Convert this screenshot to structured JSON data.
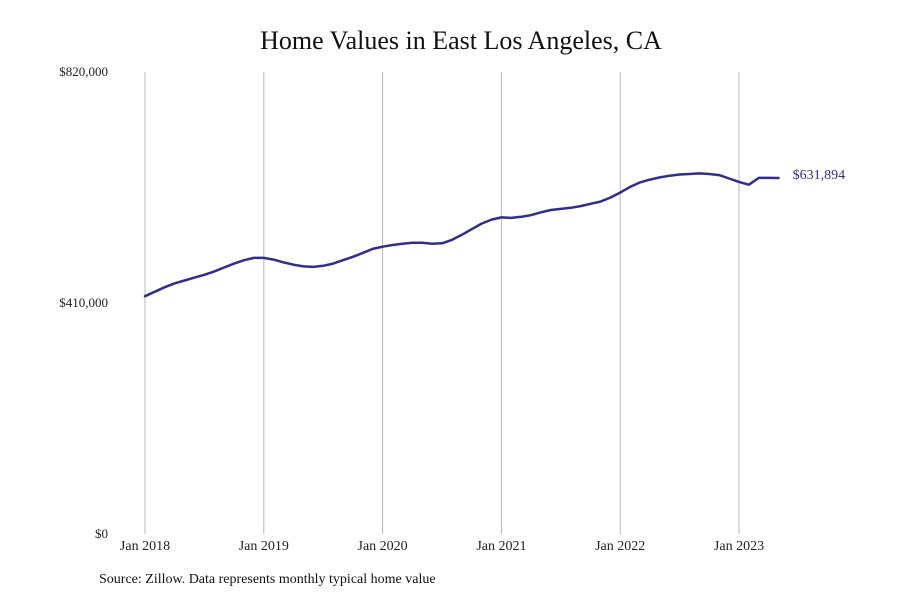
{
  "chart_data": {
    "type": "line",
    "title": "Home Values in East Los Angeles, CA",
    "source": "Source: Zillow. Data represents monthly typical home value",
    "ylim": [
      0,
      820000
    ],
    "y_ticks": [
      {
        "value": 820000,
        "label": "$820,000"
      },
      {
        "value": 410000,
        "label": "$410,000"
      },
      {
        "value": 0,
        "label": "$0"
      }
    ],
    "x_ticks": [
      {
        "value": "2018-01",
        "label": "Jan 2018"
      },
      {
        "value": "2019-01",
        "label": "Jan 2019"
      },
      {
        "value": "2020-01",
        "label": "Jan 2020"
      },
      {
        "value": "2021-01",
        "label": "Jan 2021"
      },
      {
        "value": "2022-01",
        "label": "Jan 2022"
      },
      {
        "value": "2023-01",
        "label": "Jan 2023"
      }
    ],
    "grid": "vertical",
    "line_color": "#2e2e8f",
    "end_label": "$631,894",
    "series": [
      {
        "x": [
          "2018-01",
          "2018-02",
          "2018-03",
          "2018-04",
          "2018-05",
          "2018-06",
          "2018-07",
          "2018-08",
          "2018-09",
          "2018-10",
          "2018-11",
          "2018-12",
          "2019-01",
          "2019-02",
          "2019-03",
          "2019-04",
          "2019-05",
          "2019-06",
          "2019-07",
          "2019-08",
          "2019-09",
          "2019-10",
          "2019-11",
          "2019-12",
          "2020-01",
          "2020-02",
          "2020-03",
          "2020-04",
          "2020-05",
          "2020-06",
          "2020-07",
          "2020-08",
          "2020-09",
          "2020-10",
          "2020-11",
          "2020-12",
          "2021-01",
          "2021-02",
          "2021-03",
          "2021-04",
          "2021-05",
          "2021-06",
          "2021-07",
          "2021-08",
          "2021-09",
          "2021-10",
          "2021-11",
          "2021-12",
          "2022-01",
          "2022-02",
          "2022-03",
          "2022-04",
          "2022-05",
          "2022-06",
          "2022-07",
          "2022-08",
          "2022-09",
          "2022-10",
          "2022-11",
          "2022-12",
          "2023-01",
          "2023-02",
          "2023-03",
          "2023-04",
          "2023-05"
        ],
        "values": [
          422000,
          430000,
          438000,
          445000,
          450000,
          455000,
          460000,
          466000,
          473000,
          480000,
          486000,
          490000,
          490000,
          487000,
          482000,
          478000,
          475000,
          474000,
          476000,
          480000,
          486000,
          492000,
          499000,
          506000,
          510000,
          513000,
          515000,
          517000,
          517000,
          515000,
          516000,
          522000,
          531000,
          541000,
          551000,
          558000,
          562000,
          561000,
          563000,
          566000,
          571000,
          575000,
          577000,
          579000,
          582000,
          586000,
          590000,
          597000,
          606000,
          616000,
          624000,
          629000,
          633000,
          636000,
          638000,
          639000,
          640000,
          639000,
          637000,
          631000,
          625000,
          620000,
          632000,
          632000,
          631894
        ]
      }
    ]
  }
}
